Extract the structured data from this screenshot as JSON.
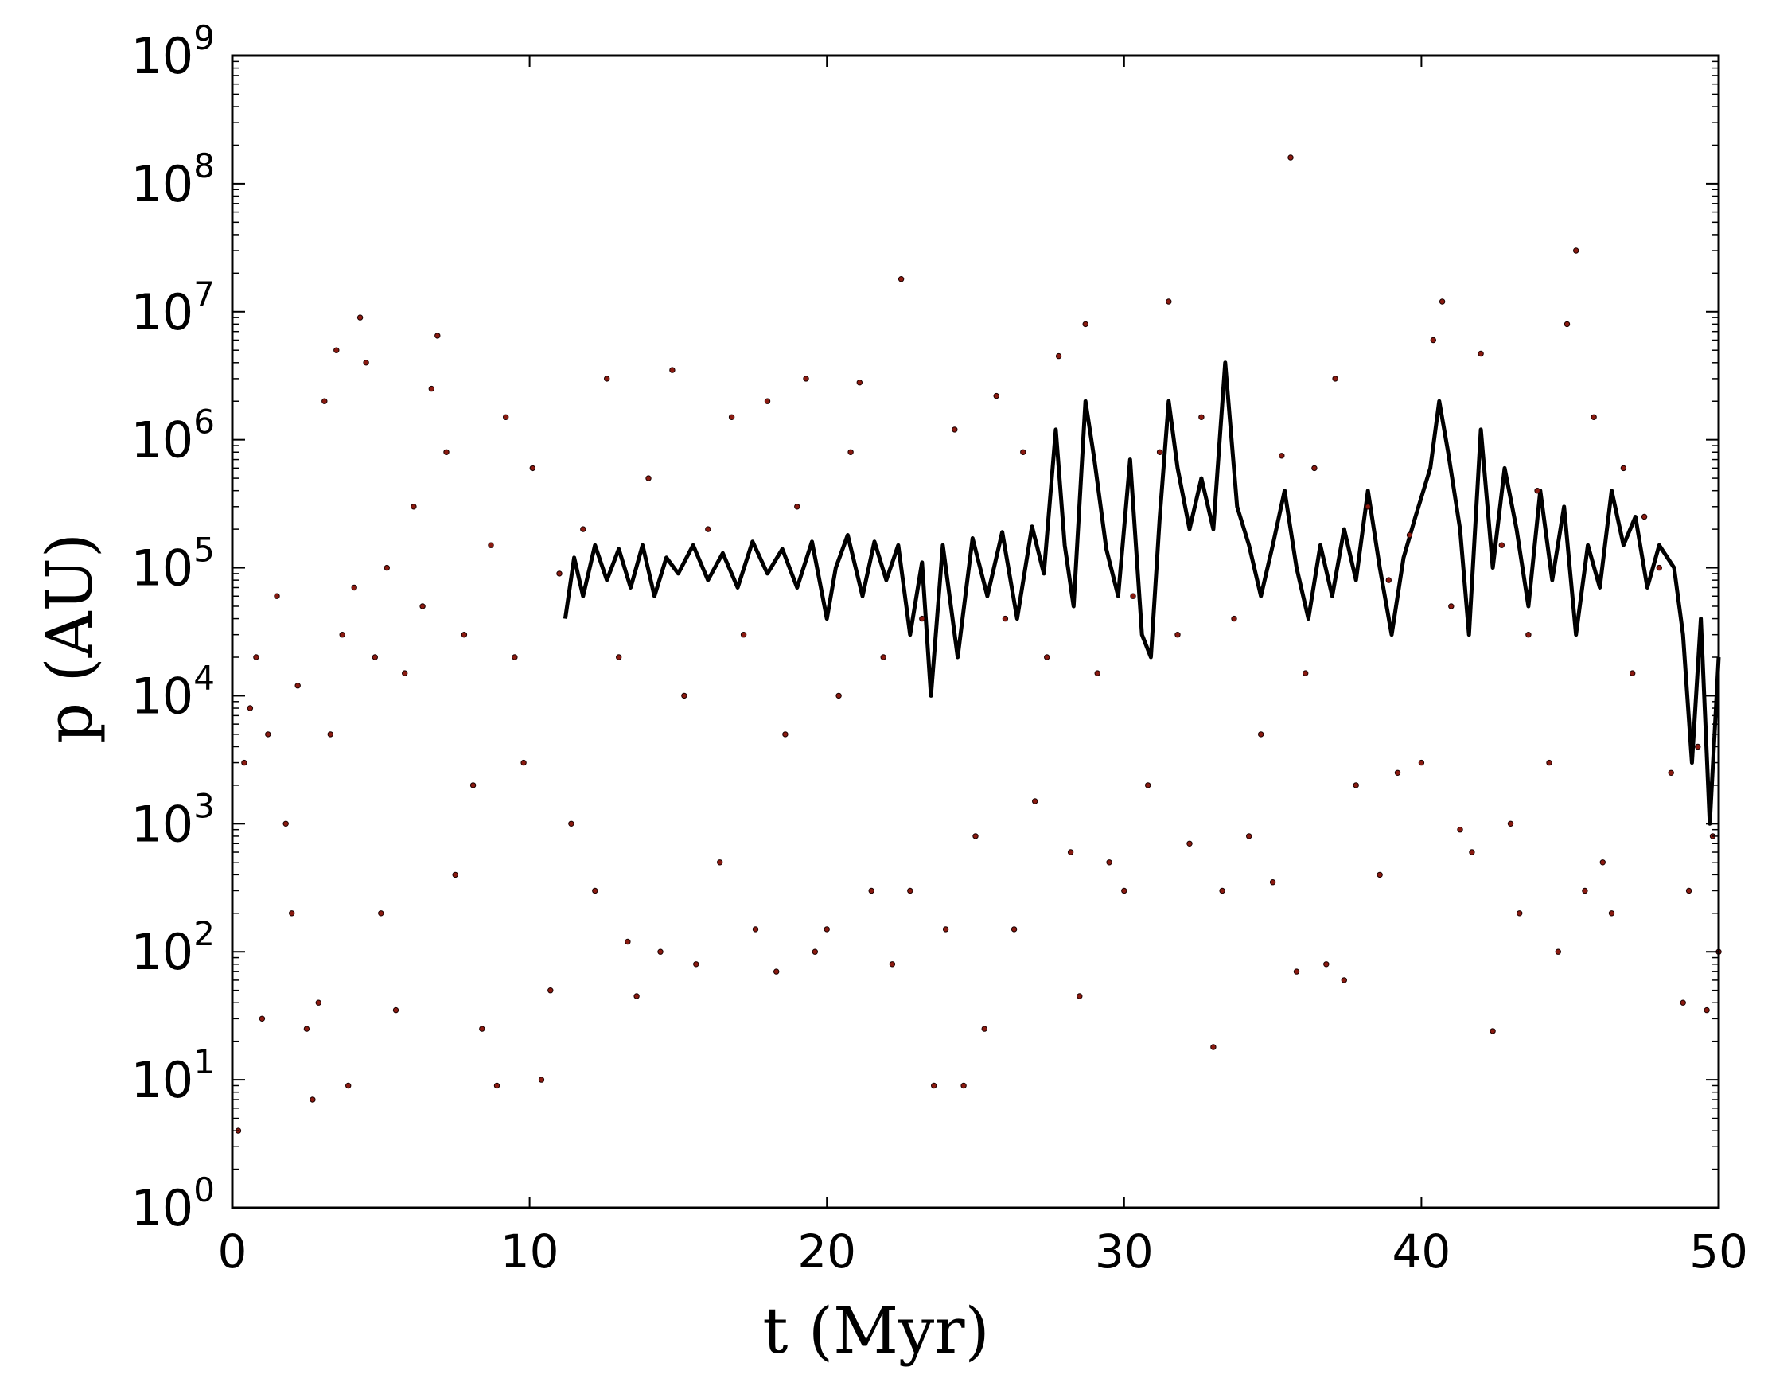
{
  "chart_data": {
    "type": "scatter",
    "title": "",
    "xlabel": "t (Myr)",
    "ylabel": "p (AU)",
    "xlim": [
      0,
      50
    ],
    "ylim": [
      1,
      1000000000
    ],
    "yscale": "log",
    "grid": false,
    "legend": "none",
    "xticks": [
      0,
      10,
      20,
      30,
      40,
      50
    ],
    "xtick_labels": [
      "0",
      "10",
      "20",
      "30",
      "40",
      "50"
    ],
    "yticks": [
      1,
      10,
      100,
      1000,
      10000,
      100000,
      1000000,
      10000000,
      100000000,
      1000000000
    ],
    "ytick_labels": [
      {
        "base": "10",
        "exp": "0"
      },
      {
        "base": "10",
        "exp": "1"
      },
      {
        "base": "10",
        "exp": "2"
      },
      {
        "base": "10",
        "exp": "3"
      },
      {
        "base": "10",
        "exp": "4"
      },
      {
        "base": "10",
        "exp": "5"
      },
      {
        "base": "10",
        "exp": "6"
      },
      {
        "base": "10",
        "exp": "7"
      },
      {
        "base": "10",
        "exp": "8"
      },
      {
        "base": "10",
        "exp": "9"
      }
    ],
    "colors": {
      "points": "#8b1a10",
      "point_edge": "#1a0000",
      "line": "#000000"
    },
    "series": [
      {
        "style": "line",
        "points": [
          [
            11.2,
            40000
          ],
          [
            11.5,
            120000
          ],
          [
            11.8,
            60000
          ],
          [
            12.2,
            150000
          ],
          [
            12.6,
            80000
          ],
          [
            13.0,
            140000
          ],
          [
            13.4,
            70000
          ],
          [
            13.8,
            150000
          ],
          [
            14.2,
            60000
          ],
          [
            14.6,
            120000
          ],
          [
            15.0,
            90000
          ],
          [
            15.5,
            150000
          ],
          [
            16.0,
            80000
          ],
          [
            16.5,
            130000
          ],
          [
            17.0,
            70000
          ],
          [
            17.5,
            160000
          ],
          [
            18.0,
            90000
          ],
          [
            18.5,
            140000
          ],
          [
            19.0,
            70000
          ],
          [
            19.5,
            160000
          ],
          [
            20.0,
            40000
          ],
          [
            20.3,
            100000
          ],
          [
            20.7,
            180000
          ],
          [
            21.2,
            60000
          ],
          [
            21.6,
            160000
          ],
          [
            22.0,
            80000
          ],
          [
            22.4,
            150000
          ],
          [
            22.8,
            30000
          ],
          [
            23.2,
            110000
          ],
          [
            23.5,
            10000
          ],
          [
            23.9,
            150000
          ],
          [
            24.4,
            20000
          ],
          [
            24.9,
            170000
          ],
          [
            25.4,
            60000
          ],
          [
            25.9,
            190000
          ],
          [
            26.4,
            40000
          ],
          [
            26.9,
            210000
          ],
          [
            27.3,
            90000
          ],
          [
            27.7,
            1200000
          ],
          [
            28.0,
            150000
          ],
          [
            28.3,
            50000
          ],
          [
            28.7,
            2000000
          ],
          [
            29.0,
            700000
          ],
          [
            29.4,
            140000
          ],
          [
            29.8,
            60000
          ],
          [
            30.2,
            700000
          ],
          [
            30.6,
            30000
          ],
          [
            30.9,
            20000
          ],
          [
            31.2,
            250000
          ],
          [
            31.5,
            2000000
          ],
          [
            31.8,
            600000
          ],
          [
            32.2,
            200000
          ],
          [
            32.6,
            500000
          ],
          [
            33.0,
            200000
          ],
          [
            33.4,
            4000000
          ],
          [
            33.8,
            300000
          ],
          [
            34.2,
            150000
          ],
          [
            34.6,
            60000
          ],
          [
            35.0,
            150000
          ],
          [
            35.4,
            400000
          ],
          [
            35.8,
            100000
          ],
          [
            36.2,
            40000
          ],
          [
            36.6,
            150000
          ],
          [
            37.0,
            60000
          ],
          [
            37.4,
            200000
          ],
          [
            37.8,
            80000
          ],
          [
            38.2,
            400000
          ],
          [
            38.6,
            100000
          ],
          [
            39.0,
            30000
          ],
          [
            39.4,
            120000
          ],
          [
            39.8,
            250000
          ],
          [
            40.3,
            600000
          ],
          [
            40.6,
            2000000
          ],
          [
            40.9,
            800000
          ],
          [
            41.3,
            200000
          ],
          [
            41.6,
            30000
          ],
          [
            42.0,
            1200000
          ],
          [
            42.4,
            100000
          ],
          [
            42.8,
            600000
          ],
          [
            43.2,
            200000
          ],
          [
            43.6,
            50000
          ],
          [
            44.0,
            400000
          ],
          [
            44.4,
            80000
          ],
          [
            44.8,
            300000
          ],
          [
            45.2,
            30000
          ],
          [
            45.6,
            150000
          ],
          [
            46.0,
            70000
          ],
          [
            46.4,
            400000
          ],
          [
            46.8,
            150000
          ],
          [
            47.2,
            250000
          ],
          [
            47.6,
            70000
          ],
          [
            48.0,
            150000
          ],
          [
            48.5,
            100000
          ],
          [
            48.8,
            30000
          ],
          [
            49.1,
            3000
          ],
          [
            49.4,
            40000
          ],
          [
            49.7,
            1000
          ],
          [
            50.0,
            20000
          ]
        ]
      },
      {
        "style": "points",
        "points": [
          [
            0.2,
            4
          ],
          [
            0.4,
            3000
          ],
          [
            0.6,
            8000
          ],
          [
            0.8,
            20000
          ],
          [
            1.0,
            30
          ],
          [
            1.2,
            5000
          ],
          [
            1.5,
            60000
          ],
          [
            1.8,
            1000
          ],
          [
            2.0,
            200
          ],
          [
            2.2,
            12000
          ],
          [
            2.5,
            25
          ],
          [
            2.7,
            7
          ],
          [
            2.9,
            40
          ],
          [
            3.1,
            2000000
          ],
          [
            3.3,
            5000
          ],
          [
            3.5,
            5000000
          ],
          [
            3.7,
            30000
          ],
          [
            3.9,
            9
          ],
          [
            4.1,
            70000
          ],
          [
            4.3,
            9000000
          ],
          [
            4.5,
            4000000
          ],
          [
            4.8,
            20000
          ],
          [
            5.0,
            200
          ],
          [
            5.2,
            100000
          ],
          [
            5.5,
            35
          ],
          [
            5.8,
            15000
          ],
          [
            6.1,
            300000
          ],
          [
            6.4,
            50000
          ],
          [
            6.7,
            2500000
          ],
          [
            6.9,
            6500000
          ],
          [
            7.2,
            800000
          ],
          [
            7.5,
            400
          ],
          [
            7.8,
            30000
          ],
          [
            8.1,
            2000
          ],
          [
            8.4,
            25
          ],
          [
            8.7,
            150000
          ],
          [
            8.9,
            9
          ],
          [
            9.2,
            1500000
          ],
          [
            9.5,
            20000
          ],
          [
            9.8,
            3000
          ],
          [
            10.1,
            600000
          ],
          [
            10.4,
            10
          ],
          [
            10.7,
            50
          ],
          [
            11.0,
            90000
          ],
          [
            11.4,
            1000
          ],
          [
            11.8,
            200000
          ],
          [
            12.2,
            300
          ],
          [
            12.6,
            3000000
          ],
          [
            13.0,
            20000
          ],
          [
            13.3,
            120
          ],
          [
            13.6,
            45
          ],
          [
            14.0,
            500000
          ],
          [
            14.4,
            100
          ],
          [
            14.8,
            3500000
          ],
          [
            15.2,
            10000
          ],
          [
            15.6,
            80
          ],
          [
            16.0,
            200000
          ],
          [
            16.4,
            500
          ],
          [
            16.8,
            1500000
          ],
          [
            17.2,
            30000
          ],
          [
            17.6,
            150
          ],
          [
            18.0,
            2000000
          ],
          [
            18.3,
            70
          ],
          [
            18.6,
            5000
          ],
          [
            19.0,
            300000
          ],
          [
            19.3,
            3000000
          ],
          [
            19.6,
            100
          ],
          [
            20.0,
            150
          ],
          [
            20.4,
            10000
          ],
          [
            20.8,
            800000
          ],
          [
            21.1,
            2800000
          ],
          [
            21.5,
            300
          ],
          [
            21.9,
            20000
          ],
          [
            22.2,
            80
          ],
          [
            22.5,
            18000000
          ],
          [
            22.8,
            300
          ],
          [
            23.2,
            40000
          ],
          [
            23.6,
            9
          ],
          [
            24.0,
            150
          ],
          [
            24.3,
            1200000
          ],
          [
            24.6,
            9
          ],
          [
            25.0,
            800
          ],
          [
            25.3,
            25
          ],
          [
            25.7,
            2200000
          ],
          [
            26.0,
            40000
          ],
          [
            26.3,
            150
          ],
          [
            26.6,
            800000
          ],
          [
            27.0,
            1500
          ],
          [
            27.4,
            20000
          ],
          [
            27.8,
            4500000
          ],
          [
            28.2,
            600
          ],
          [
            28.5,
            45
          ],
          [
            28.7,
            8000000
          ],
          [
            29.1,
            15000
          ],
          [
            29.5,
            500
          ],
          [
            30.0,
            300
          ],
          [
            30.3,
            60000
          ],
          [
            30.8,
            2000
          ],
          [
            31.2,
            800000
          ],
          [
            31.5,
            12000000
          ],
          [
            31.8,
            30000
          ],
          [
            32.2,
            700
          ],
          [
            32.6,
            1500000
          ],
          [
            33.0,
            18
          ],
          [
            33.3,
            300
          ],
          [
            33.7,
            40000
          ],
          [
            34.2,
            800
          ],
          [
            34.6,
            5000
          ],
          [
            35.0,
            350
          ],
          [
            35.3,
            750000
          ],
          [
            35.6,
            160000000
          ],
          [
            35.8,
            70
          ],
          [
            36.1,
            15000
          ],
          [
            36.4,
            600000
          ],
          [
            36.8,
            80
          ],
          [
            37.1,
            3000000
          ],
          [
            37.4,
            60
          ],
          [
            37.8,
            2000
          ],
          [
            38.2,
            300000
          ],
          [
            38.6,
            400
          ],
          [
            38.9,
            80000
          ],
          [
            39.2,
            2500
          ],
          [
            39.6,
            180000
          ],
          [
            40.0,
            3000
          ],
          [
            40.4,
            6000000
          ],
          [
            40.7,
            12000000
          ],
          [
            41.0,
            50000
          ],
          [
            41.3,
            900
          ],
          [
            41.7,
            600
          ],
          [
            42.0,
            4700000
          ],
          [
            42.4,
            24
          ],
          [
            42.7,
            150000
          ],
          [
            43.0,
            1000
          ],
          [
            43.3,
            200
          ],
          [
            43.6,
            30000
          ],
          [
            43.9,
            400000
          ],
          [
            44.3,
            3000
          ],
          [
            44.6,
            100
          ],
          [
            44.9,
            8000000
          ],
          [
            45.2,
            30000000
          ],
          [
            45.5,
            300
          ],
          [
            45.8,
            1500000
          ],
          [
            46.1,
            500
          ],
          [
            46.4,
            200
          ],
          [
            46.8,
            600000
          ],
          [
            47.1,
            15000
          ],
          [
            47.5,
            250000
          ],
          [
            48.0,
            100000
          ],
          [
            48.4,
            2500
          ],
          [
            48.8,
            40
          ],
          [
            49.0,
            300
          ],
          [
            49.3,
            4000
          ],
          [
            49.6,
            35
          ],
          [
            49.8,
            800
          ],
          [
            50.0,
            100
          ]
        ]
      }
    ]
  }
}
